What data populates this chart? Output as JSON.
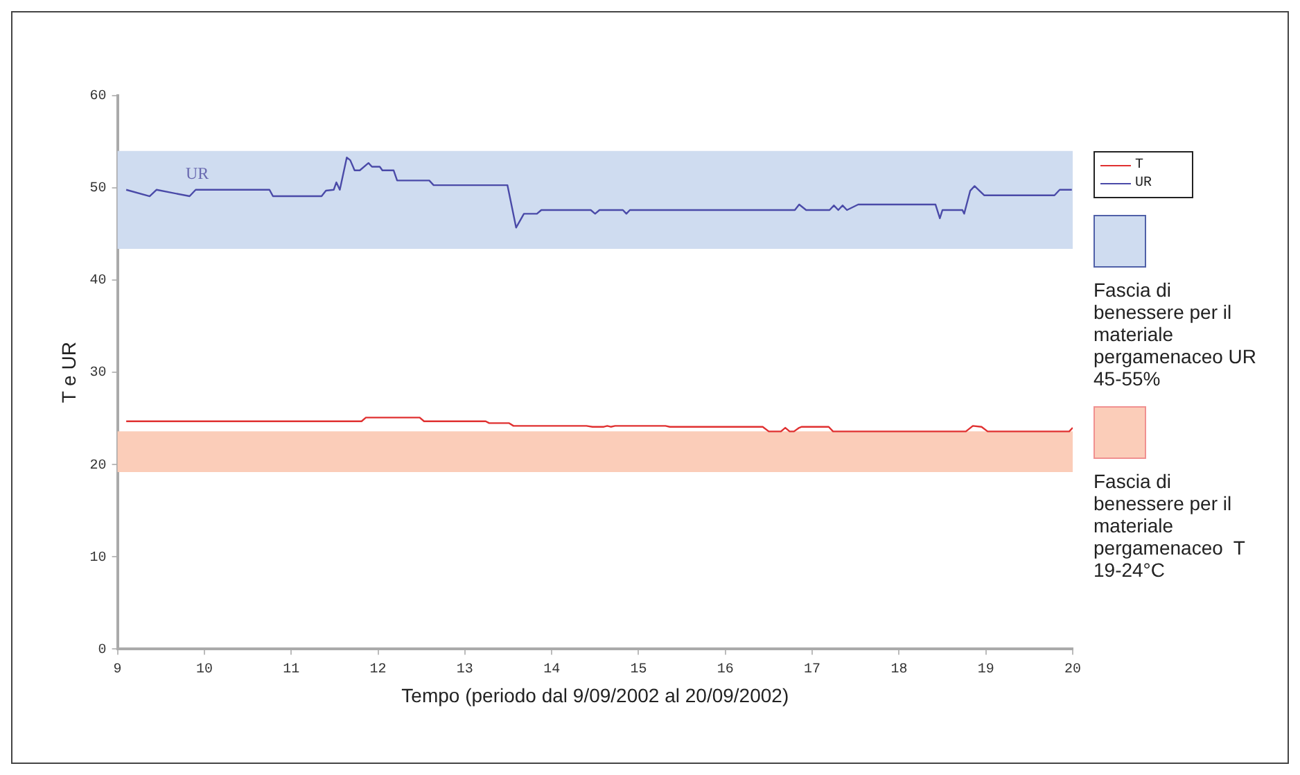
{
  "chart_data": {
    "type": "line",
    "xlabel": "Tempo (periodo dal 9/09/2002 al 20/09/2002)",
    "ylabel": "T e UR",
    "xlim": [
      9,
      20
    ],
    "xticks": [
      9,
      10,
      11,
      12,
      13,
      14,
      15,
      16,
      17,
      18,
      19,
      20
    ],
    "ylim": [
      0,
      60
    ],
    "yticks": [
      0,
      10,
      20,
      30,
      40,
      50,
      60
    ],
    "grid": false,
    "legend": "right",
    "marker": "none",
    "line_style": "solid",
    "series": [
      {
        "name": "T",
        "color": "#e03030",
        "x": [
          9.1,
          11.81,
          11.86,
          12.48,
          12.53,
          13.24,
          13.28,
          13.51,
          13.56,
          14.4,
          14.47,
          14.6,
          14.64,
          14.68,
          14.73,
          15.31,
          15.36,
          16.43,
          16.5,
          16.64,
          16.69,
          16.74,
          16.79,
          16.85,
          16.88,
          17.19,
          17.24,
          18.77,
          18.85,
          18.95,
          19.02,
          19.96,
          20.0
        ],
        "values": [
          24.7,
          24.7,
          25.1,
          25.1,
          24.7,
          24.7,
          24.5,
          24.5,
          24.2,
          24.2,
          24.1,
          24.1,
          24.2,
          24.1,
          24.2,
          24.2,
          24.1,
          24.1,
          23.6,
          23.6,
          24.0,
          23.6,
          23.6,
          24.0,
          24.1,
          24.1,
          23.6,
          23.6,
          24.2,
          24.1,
          23.6,
          23.6,
          24.0
        ]
      },
      {
        "name": "UR",
        "color": "#4a4aa8",
        "x": [
          9.1,
          9.37,
          9.45,
          9.83,
          9.9,
          10.75,
          10.79,
          11.35,
          11.4,
          11.49,
          11.52,
          11.56,
          11.64,
          11.68,
          11.73,
          11.79,
          11.89,
          11.93,
          12.02,
          12.05,
          12.18,
          12.22,
          12.59,
          12.64,
          13.49,
          13.59,
          13.68,
          13.83,
          13.88,
          14.45,
          14.5,
          14.55,
          14.82,
          14.86,
          14.9,
          16.8,
          16.85,
          16.93,
          17.2,
          17.25,
          17.3,
          17.35,
          17.4,
          17.53,
          18.42,
          18.47,
          18.5,
          18.73,
          18.75,
          18.82,
          18.87,
          18.98,
          19.79,
          19.85,
          19.99
        ],
        "values": [
          49.8,
          49.1,
          49.8,
          49.1,
          49.8,
          49.8,
          49.1,
          49.1,
          49.7,
          49.8,
          50.6,
          49.8,
          53.3,
          53.0,
          51.9,
          51.9,
          52.7,
          52.3,
          52.3,
          51.9,
          51.9,
          50.8,
          50.8,
          50.3,
          50.3,
          45.7,
          47.2,
          47.2,
          47.6,
          47.6,
          47.2,
          47.6,
          47.6,
          47.2,
          47.6,
          47.6,
          48.2,
          47.6,
          47.6,
          48.1,
          47.6,
          48.1,
          47.6,
          48.2,
          48.2,
          46.7,
          47.6,
          47.6,
          47.2,
          49.7,
          50.2,
          49.2,
          49.2,
          49.8,
          49.8
        ]
      }
    ],
    "bands": [
      {
        "axis": "y",
        "from": 43.4,
        "to": 54.0,
        "color": "#cfdcf0",
        "label": "Fascia di benessere per il materiale pergamenaceo UR 45-55%"
      },
      {
        "axis": "y",
        "from": 19.2,
        "to": 23.6,
        "color": "#fbcdb9",
        "label": "Fascia di benessere per il materiale pergamenaceo  T  19-24°C"
      }
    ],
    "annotations": [
      "UR"
    ]
  }
}
